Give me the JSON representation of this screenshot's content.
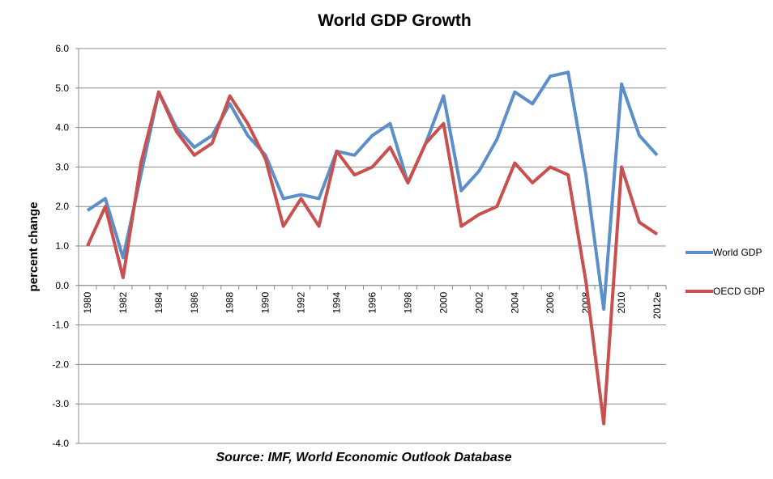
{
  "chart_data": {
    "type": "line",
    "title": "World GDP Growth",
    "xlabel": "",
    "ylabel": "percent change",
    "source_note": "Source: IMF, World Economic Outlook Database",
    "ylim": [
      -4.0,
      6.0
    ],
    "yticks": [
      "6.0",
      "5.0",
      "4.0",
      "3.0",
      "2.0",
      "1.0",
      "0.0",
      "-1.0",
      "-2.0",
      "-3.0",
      "-4.0"
    ],
    "ytick_values": [
      6,
      5,
      4,
      3,
      2,
      1,
      0,
      -1,
      -2,
      -3,
      -4
    ],
    "grid": true,
    "legend_position": "right",
    "categories": [
      "1980",
      "1981",
      "1982",
      "1983",
      "1984",
      "1985",
      "1986",
      "1987",
      "1988",
      "1989",
      "1990",
      "1991",
      "1992",
      "1993",
      "1994",
      "1995",
      "1996",
      "1997",
      "1998",
      "1999",
      "2000",
      "2001",
      "2002",
      "2003",
      "2004",
      "2005",
      "2006",
      "2007",
      "2008",
      "2009",
      "2010",
      "2011",
      "2012e"
    ],
    "xtick_labels": [
      "1980",
      "",
      "1982",
      "",
      "1984",
      "",
      "1986",
      "",
      "1988",
      "",
      "1990",
      "",
      "1992",
      "",
      "1994",
      "",
      "1996",
      "",
      "1998",
      "",
      "2000",
      "",
      "2002",
      "",
      "2004",
      "",
      "2006",
      "",
      "2008",
      "",
      "2010",
      "",
      "2012e"
    ],
    "series": [
      {
        "name": "World GDP",
        "color": "#5B8FC9",
        "values": [
          1.9,
          2.2,
          0.7,
          2.8,
          4.9,
          4.0,
          3.5,
          3.8,
          4.6,
          3.8,
          3.3,
          2.2,
          2.3,
          2.2,
          3.4,
          3.3,
          3.8,
          4.1,
          2.6,
          3.6,
          4.8,
          2.4,
          2.9,
          3.7,
          4.9,
          4.6,
          5.3,
          5.4,
          2.8,
          -0.6,
          5.1,
          3.8,
          3.3
        ]
      },
      {
        "name": "OECD GDP",
        "color": "#C9504E",
        "values": [
          1.0,
          2.0,
          0.2,
          3.1,
          4.9,
          3.9,
          3.3,
          3.6,
          4.8,
          4.1,
          3.2,
          1.5,
          2.2,
          1.5,
          3.4,
          2.8,
          3.0,
          3.5,
          2.6,
          3.6,
          4.1,
          1.5,
          1.8,
          2.0,
          3.1,
          2.6,
          3.0,
          2.8,
          0.1,
          -3.5,
          3.0,
          1.6,
          1.3
        ]
      }
    ]
  },
  "colors": {
    "grid": "#8c8c8c",
    "axis": "#8c8c8c",
    "background": "#ffffff"
  }
}
